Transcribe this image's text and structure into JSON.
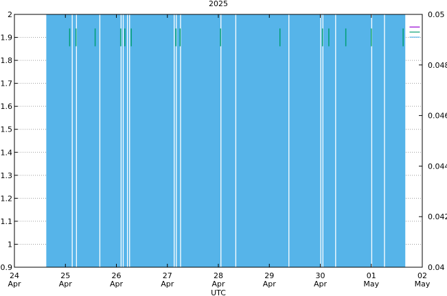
{
  "chart_data": {
    "type": "area",
    "title": "2025",
    "xlabel": "UTC",
    "ylabel": "",
    "grid": true,
    "legend": "none",
    "x_ticks": [
      {
        "date": "2025-04-24",
        "day": "24",
        "month": "Apr"
      },
      {
        "date": "2025-04-25",
        "day": "25",
        "month": "Apr"
      },
      {
        "date": "2025-04-26",
        "day": "26",
        "month": "Apr"
      },
      {
        "date": "2025-04-27",
        "day": "27",
        "month": "Apr"
      },
      {
        "date": "2025-04-28",
        "day": "28",
        "month": "Apr"
      },
      {
        "date": "2025-04-29",
        "day": "29",
        "month": "Apr"
      },
      {
        "date": "2025-04-30",
        "day": "30",
        "month": "Apr"
      },
      {
        "date": "2025-05-01",
        "day": "01",
        "month": "May"
      },
      {
        "date": "2025-05-02",
        "day": "02",
        "month": "May"
      }
    ],
    "xlim": [
      "2025-04-24",
      "2025-05-02"
    ],
    "ylim_left": [
      0.9,
      2.0
    ],
    "y_ticks_left": [
      "0.9",
      "1",
      "1.1",
      "1.2",
      "1.3",
      "1.4",
      "1.5",
      "1.6",
      "1.7",
      "1.8",
      "1.9",
      "2"
    ],
    "ylim_right": [
      0.04,
      0.05
    ],
    "y_ticks_right": [
      "0.04",
      "0.042",
      "0.044",
      "0.046",
      "0.048",
      "0.05"
    ],
    "series": [
      {
        "color": "#56b4e9",
        "axis": "left",
        "fill": true,
        "span": [
          "2025-04-24 15:00",
          "2025-05-01 16:00"
        ],
        "level": 2.0,
        "gaps": [
          "2025-04-25 03:00",
          "2025-04-25 05:00",
          "2025-04-25 16:00",
          "2025-04-26 02:00",
          "2025-04-26 03:00",
          "2025-04-26 05:00",
          "2025-04-26 06:00",
          "2025-04-27 03:00",
          "2025-04-27 04:00",
          "2025-04-27 06:00",
          "2025-04-28 01:00",
          "2025-04-28 08:00",
          "2025-04-29 09:00",
          "2025-04-30 00:00",
          "2025-04-30 01:00",
          "2025-04-30 07:00",
          "2025-05-01 00:00",
          "2025-05-01 06:00"
        ]
      },
      {
        "color": "#009e73",
        "axis": "left",
        "fill": false,
        "level": 1.9,
        "points": [
          "2025-04-25 02:00",
          "2025-04-25 05:00",
          "2025-04-25 14:00",
          "2025-04-26 02:00",
          "2025-04-26 04:00",
          "2025-04-26 07:00",
          "2025-04-27 04:00",
          "2025-04-27 06:00",
          "2025-04-28 01:00",
          "2025-04-29 05:00",
          "2025-04-30 01:00",
          "2025-04-30 04:00",
          "2025-04-30 12:00",
          "2025-05-01 00:00",
          "2025-05-01 15:00"
        ]
      },
      {
        "color": "#9400d3",
        "axis": "right",
        "fill": false,
        "level": 0.0495,
        "points": [
          "2025-05-01 18:00"
        ]
      },
      {
        "color": "#009e73",
        "axis": "right",
        "fill": false,
        "level": 0.0493,
        "points": [
          "2025-05-01 18:00"
        ]
      },
      {
        "color": "#56b4e9",
        "axis": "right",
        "fill": false,
        "level": 0.0491,
        "points": [
          "2025-05-01 18:00"
        ]
      }
    ]
  }
}
